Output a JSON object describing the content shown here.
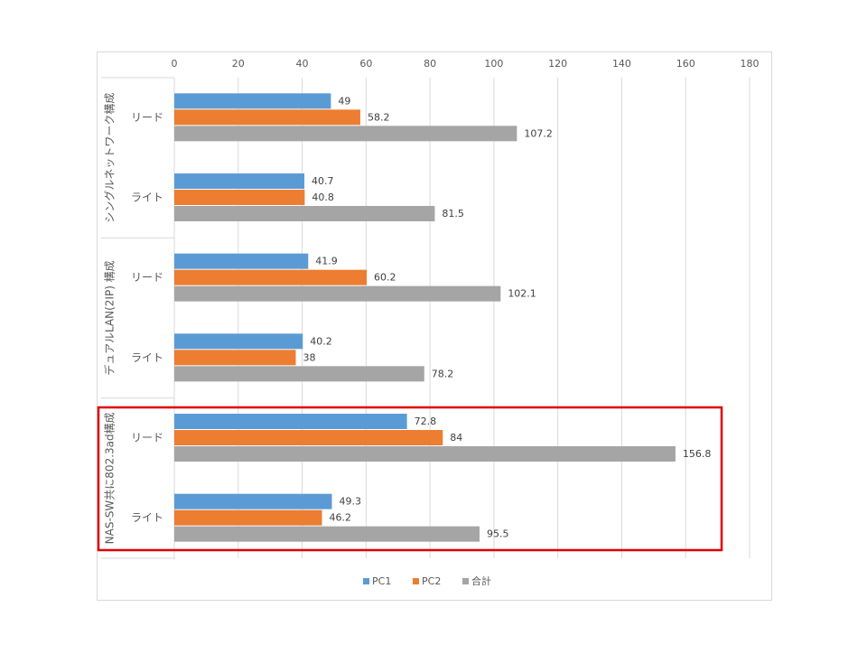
{
  "chart_data": {
    "type": "bar",
    "orientation": "horizontal",
    "groups": [
      "シングルネットワーク構成",
      "デュアルLAN(2IP) 構成",
      "NAS-SW共に802.3ad構成"
    ],
    "categories": [
      "リード",
      "ライト",
      "リード",
      "ライト",
      "リード",
      "ライト"
    ],
    "series": [
      {
        "name": "PC1",
        "color": "#5b9bd5",
        "values": [
          49,
          40.7,
          41.9,
          40.2,
          72.8,
          49.3
        ]
      },
      {
        "name": "PC2",
        "color": "#ed7d31",
        "values": [
          58.2,
          40.8,
          60.2,
          38,
          84,
          46.2
        ]
      },
      {
        "name": "合計",
        "color": "#a5a5a5",
        "values": [
          107.2,
          81.5,
          102.1,
          78.2,
          156.8,
          95.5
        ]
      }
    ],
    "xlim": [
      0,
      180
    ],
    "xticks": [
      0,
      20,
      40,
      60,
      80,
      100,
      120,
      140,
      160,
      180
    ],
    "grid": true,
    "legend": "bottom"
  }
}
